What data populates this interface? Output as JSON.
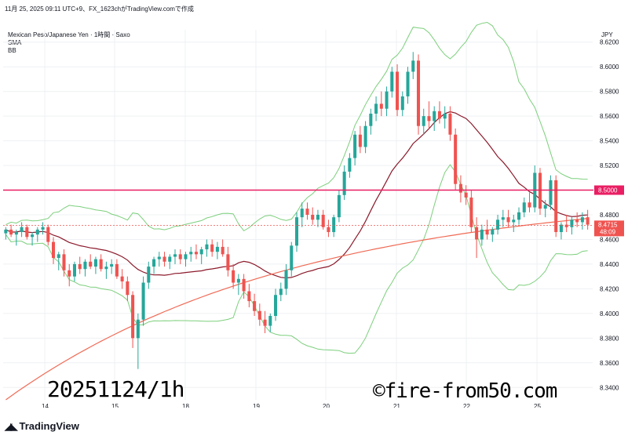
{
  "header": {
    "caption": "11月 25, 2025 09:11 UTC+9、FX_1623chがTradingView.comで作成"
  },
  "legend": {
    "symbol": "Mexican Peso/Japanese Yen · 1時間 · Saxo",
    "indicator1": "SMA",
    "indicator2": "BB"
  },
  "currency": "JPY",
  "watermark_left": "20251124/1h",
  "watermark_right": "©fire-from50.com",
  "logo_text": "TradingView",
  "colors": {
    "up": "#26a69a",
    "down": "#ef5350",
    "sma_long": "#f06a55",
    "bb_mid": "#8b1a2b",
    "bb_band": "#7ccf7c",
    "hline": "#e91e63",
    "current": "#ef5350"
  },
  "chart_data": {
    "type": "candlestick",
    "ylim": [
      8.33,
      8.63
    ],
    "y_ticks": [
      "8.6200",
      "8.6000",
      "8.5800",
      "8.5600",
      "8.5400",
      "8.5200",
      "8.4800",
      "8.4600",
      "8.4400",
      "8.4200",
      "8.4000",
      "8.3800",
      "8.3600",
      "8.3400"
    ],
    "x_ticks": [
      "14",
      "15",
      "18",
      "19",
      "20",
      "21",
      "22",
      "25"
    ],
    "horizontal_line": {
      "value": 8.5,
      "label": "8.5000"
    },
    "current_price": {
      "value": 8.4715,
      "label": "8.4715",
      "countdown": "48:09"
    },
    "candles": [
      [
        8.465,
        8.47,
        8.46,
        8.468
      ],
      [
        8.468,
        8.472,
        8.462,
        8.464
      ],
      [
        8.464,
        8.468,
        8.455,
        8.466
      ],
      [
        8.466,
        8.474,
        8.462,
        8.47
      ],
      [
        8.47,
        8.472,
        8.46,
        8.462
      ],
      [
        8.462,
        8.466,
        8.455,
        8.464
      ],
      [
        8.464,
        8.47,
        8.458,
        8.468
      ],
      [
        8.468,
        8.474,
        8.464,
        8.47
      ],
      [
        8.47,
        8.472,
        8.455,
        8.458
      ],
      [
        8.458,
        8.462,
        8.44,
        8.445
      ],
      [
        8.445,
        8.45,
        8.435,
        8.448
      ],
      [
        8.448,
        8.452,
        8.43,
        8.435
      ],
      [
        8.435,
        8.44,
        8.422,
        8.43
      ],
      [
        8.43,
        8.442,
        8.426,
        8.44
      ],
      [
        8.44,
        8.446,
        8.432,
        8.436
      ],
      [
        8.436,
        8.444,
        8.43,
        8.442
      ],
      [
        8.442,
        8.448,
        8.436,
        8.438
      ],
      [
        8.438,
        8.446,
        8.432,
        8.444
      ],
      [
        8.444,
        8.448,
        8.434,
        8.436
      ],
      [
        8.436,
        8.442,
        8.428,
        8.438
      ],
      [
        8.438,
        8.444,
        8.432,
        8.44
      ],
      [
        8.44,
        8.444,
        8.428,
        8.43
      ],
      [
        8.43,
        8.436,
        8.42,
        8.426
      ],
      [
        8.426,
        8.43,
        8.41,
        8.415
      ],
      [
        8.415,
        8.418,
        8.372,
        8.38
      ],
      [
        8.38,
        8.4,
        8.355,
        8.395
      ],
      [
        8.395,
        8.43,
        8.39,
        8.425
      ],
      [
        8.425,
        8.442,
        8.42,
        8.438
      ],
      [
        8.438,
        8.446,
        8.432,
        8.444
      ],
      [
        8.444,
        8.45,
        8.438,
        8.446
      ],
      [
        8.446,
        8.45,
        8.438,
        8.442
      ],
      [
        8.442,
        8.448,
        8.436,
        8.446
      ],
      [
        8.446,
        8.452,
        8.44,
        8.448
      ],
      [
        8.448,
        8.452,
        8.44,
        8.444
      ],
      [
        8.444,
        8.45,
        8.438,
        8.448
      ],
      [
        8.448,
        8.454,
        8.442,
        8.45
      ],
      [
        8.45,
        8.456,
        8.444,
        8.448
      ],
      [
        8.448,
        8.454,
        8.44,
        8.452
      ],
      [
        8.452,
        8.46,
        8.446,
        8.456
      ],
      [
        8.456,
        8.46,
        8.446,
        8.45
      ],
      [
        8.45,
        8.458,
        8.444,
        8.454
      ],
      [
        8.454,
        8.46,
        8.446,
        8.448
      ],
      [
        8.448,
        8.454,
        8.43,
        8.435
      ],
      [
        8.435,
        8.44,
        8.42,
        8.425
      ],
      [
        8.425,
        8.432,
        8.415,
        8.428
      ],
      [
        8.428,
        8.432,
        8.412,
        8.418
      ],
      [
        8.418,
        8.424,
        8.405,
        8.41
      ],
      [
        8.41,
        8.416,
        8.398,
        8.402
      ],
      [
        8.402,
        8.408,
        8.39,
        8.395
      ],
      [
        8.395,
        8.402,
        8.384,
        8.39
      ],
      [
        8.39,
        8.4,
        8.385,
        8.398
      ],
      [
        8.398,
        8.42,
        8.394,
        8.415
      ],
      [
        8.415,
        8.425,
        8.41,
        8.42
      ],
      [
        8.42,
        8.44,
        8.415,
        8.435
      ],
      [
        8.435,
        8.458,
        8.43,
        8.455
      ],
      [
        8.455,
        8.482,
        8.45,
        8.478
      ],
      [
        8.478,
        8.49,
        8.47,
        8.485
      ],
      [
        8.485,
        8.49,
        8.476,
        8.48
      ],
      [
        8.48,
        8.486,
        8.472,
        8.476
      ],
      [
        8.476,
        8.484,
        8.47,
        8.48
      ],
      [
        8.48,
        8.484,
        8.468,
        8.47
      ],
      [
        8.47,
        8.476,
        8.462,
        8.466
      ],
      [
        8.466,
        8.48,
        8.462,
        8.478
      ],
      [
        8.478,
        8.5,
        8.474,
        8.496
      ],
      [
        8.496,
        8.52,
        8.492,
        8.515
      ],
      [
        8.515,
        8.53,
        8.51,
        8.526
      ],
      [
        8.526,
        8.548,
        8.52,
        8.545
      ],
      [
        8.545,
        8.552,
        8.53,
        8.535
      ],
      [
        8.535,
        8.556,
        8.53,
        8.552
      ],
      [
        8.552,
        8.566,
        8.545,
        8.562
      ],
      [
        8.562,
        8.576,
        8.556,
        8.57
      ],
      [
        8.57,
        8.58,
        8.56,
        8.566
      ],
      [
        8.566,
        8.584,
        8.56,
        8.58
      ],
      [
        8.58,
        8.6,
        8.575,
        8.596
      ],
      [
        8.596,
        8.602,
        8.56,
        8.565
      ],
      [
        8.565,
        8.58,
        8.56,
        8.576
      ],
      [
        8.576,
        8.6,
        8.57,
        8.596
      ],
      [
        8.596,
        8.612,
        8.59,
        8.605
      ],
      [
        8.605,
        8.61,
        8.545,
        8.552
      ],
      [
        8.552,
        8.566,
        8.545,
        8.56
      ],
      [
        8.56,
        8.572,
        8.55,
        8.556
      ],
      [
        8.556,
        8.568,
        8.548,
        8.564
      ],
      [
        8.564,
        8.572,
        8.554,
        8.558
      ],
      [
        8.558,
        8.568,
        8.55,
        8.562
      ],
      [
        8.562,
        8.568,
        8.54,
        8.545
      ],
      [
        8.545,
        8.55,
        8.5,
        8.505
      ],
      [
        8.505,
        8.512,
        8.49,
        8.498
      ],
      [
        8.498,
        8.504,
        8.488,
        8.494
      ],
      [
        8.494,
        8.5,
        8.466,
        8.47
      ],
      [
        8.47,
        8.478,
        8.445,
        8.46
      ],
      [
        8.46,
        8.472,
        8.455,
        8.468
      ],
      [
        8.468,
        8.476,
        8.46,
        8.464
      ],
      [
        8.464,
        8.47,
        8.458,
        8.468
      ],
      [
        8.468,
        8.48,
        8.464,
        8.476
      ],
      [
        8.476,
        8.484,
        8.47,
        8.478
      ],
      [
        8.478,
        8.484,
        8.47,
        8.474
      ],
      [
        8.474,
        8.48,
        8.466,
        8.476
      ],
      [
        8.476,
        8.486,
        8.472,
        8.482
      ],
      [
        8.482,
        8.494,
        8.478,
        8.49
      ],
      [
        8.49,
        8.498,
        8.482,
        8.486
      ],
      [
        8.486,
        8.52,
        8.482,
        8.514
      ],
      [
        8.514,
        8.518,
        8.48,
        8.485
      ],
      [
        8.485,
        8.492,
        8.478,
        8.488
      ],
      [
        8.488,
        8.512,
        8.484,
        8.508
      ],
      [
        8.508,
        8.512,
        8.462,
        8.466
      ],
      [
        8.466,
        8.474,
        8.46,
        8.472
      ],
      [
        8.472,
        8.48,
        8.466,
        8.47
      ],
      [
        8.47,
        8.478,
        8.464,
        8.476
      ],
      [
        8.476,
        8.482,
        8.47,
        8.474
      ],
      [
        8.474,
        8.482,
        8.468,
        8.478
      ],
      [
        8.478,
        8.484,
        8.468,
        8.472
      ]
    ]
  }
}
